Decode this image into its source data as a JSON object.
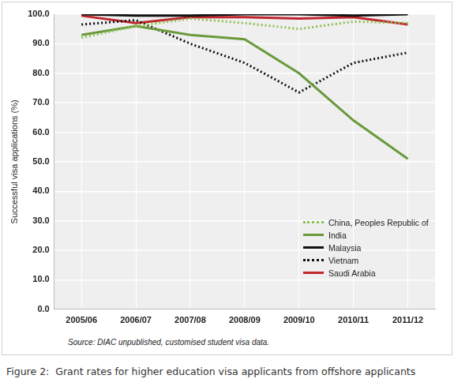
{
  "chart_data": {
    "type": "line",
    "title": "Figure 2:  Grant rates for higher education visa applicants from offshore applicants",
    "annotations": [
      "Source: DIAC unpublished, customised student visa data."
    ],
    "ylabel": "Successful visa applications (%)",
    "categories": [
      "2005/06",
      "2006/07",
      "2007/08",
      "2008/09",
      "2009/10",
      "2010/11",
      "2011/12"
    ],
    "series": [
      {
        "name": "China, Peoples Republic of",
        "color": "#8cc152",
        "line_style": "dotted",
        "values": [
          92,
          96,
          98.5,
          97,
          95,
          97.5,
          97
        ]
      },
      {
        "name": "India",
        "color": "#6a9a3c",
        "line_style": "solid",
        "values": [
          93,
          96,
          93,
          91.5,
          80,
          64,
          51
        ]
      },
      {
        "name": "Malaysia",
        "color": "#111111",
        "line_style": "solid",
        "values": [
          100,
          99.5,
          99.5,
          100,
          100,
          99.5,
          100
        ]
      },
      {
        "name": "Vietnam",
        "color": "#111111",
        "line_style": "dotted",
        "values": [
          96.5,
          98,
          90,
          83.5,
          73.5,
          83.5,
          87
        ]
      },
      {
        "name": "Saudi Arabia",
        "color": "#c0272d",
        "line_style": "solid",
        "values": [
          99.5,
          97,
          99,
          99,
          98.5,
          99,
          96.5
        ]
      }
    ],
    "ylim": [
      0,
      100
    ],
    "yticks": [
      {
        "value": 0,
        "label": "0.0"
      },
      {
        "value": 10,
        "label": "10.0"
      },
      {
        "value": 20,
        "label": "20.0"
      },
      {
        "value": 30,
        "label": "30.0"
      },
      {
        "value": 40,
        "label": "40.0"
      },
      {
        "value": 50,
        "label": "50.0"
      },
      {
        "value": 60,
        "label": "60.0"
      },
      {
        "value": 70,
        "label": "70.0"
      },
      {
        "value": 80,
        "label": "80.0"
      },
      {
        "value": 90,
        "label": "90.0"
      },
      {
        "value": 100,
        "label": "100.0"
      }
    ],
    "grid": true,
    "legend": "lower right"
  }
}
